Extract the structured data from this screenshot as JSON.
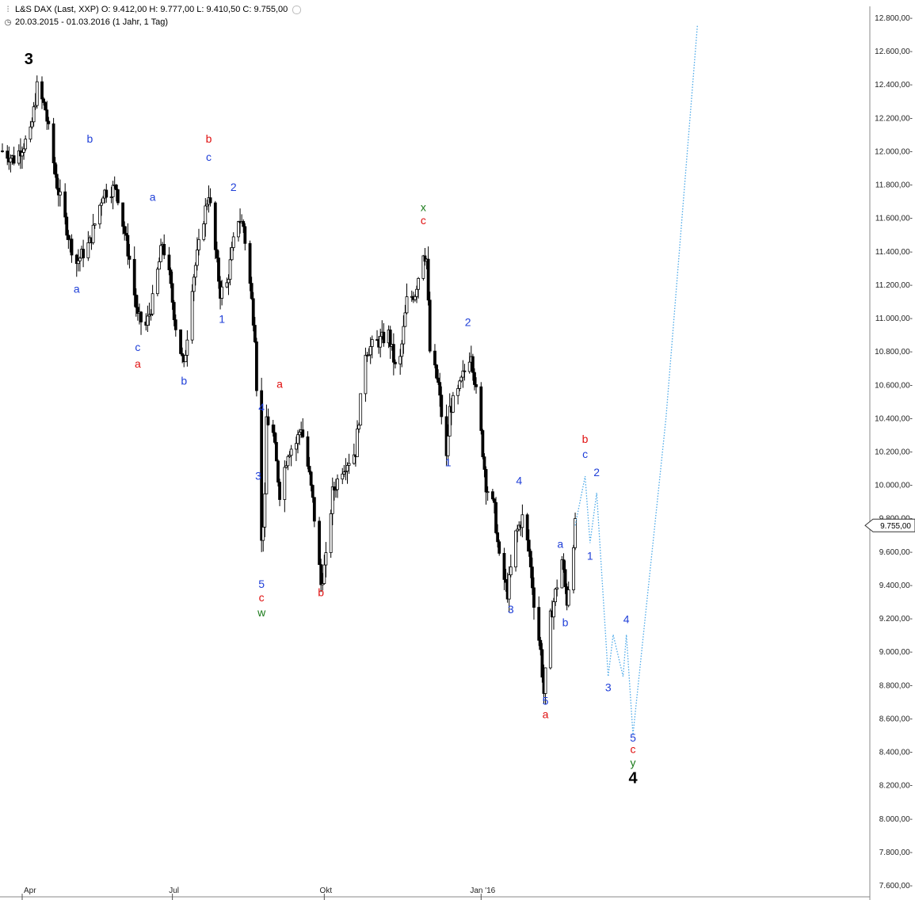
{
  "header": {
    "chart_icon": "candlestick-icon",
    "clock_icon": "clock-icon",
    "line1": "L&S DAX (Last, XXP)  O: 9.412,00  H: 9.777,00  L: 9.410,50  C: 9.755,00",
    "line2": "20.03.2015 - 01.03.2016 (1 Jahr, 1 Tag)"
  },
  "chart_data": {
    "type": "candlestick",
    "instrument": "L&S DAX",
    "period": "20.03.2015 - 01.03.2016",
    "ohlc_last": {
      "open": 9412.0,
      "high": 9777.0,
      "low": 9410.5,
      "close": 9755.0
    },
    "last_price_label": "9.755,00",
    "ylim": [
      7600,
      12800
    ],
    "y_ticks": [
      {
        "v": 12800,
        "label": "12.800,00-"
      },
      {
        "v": 12600,
        "label": "12.600,00-"
      },
      {
        "v": 12400,
        "label": "12.400,00-"
      },
      {
        "v": 12200,
        "label": "12.200,00-"
      },
      {
        "v": 12000,
        "label": "12.000,00-"
      },
      {
        "v": 11800,
        "label": "11.800,00-"
      },
      {
        "v": 11600,
        "label": "11.600,00-"
      },
      {
        "v": 11400,
        "label": "11.400,00-"
      },
      {
        "v": 11200,
        "label": "11.200,00-"
      },
      {
        "v": 11000,
        "label": "11.000,00-"
      },
      {
        "v": 10800,
        "label": "10.800,00-"
      },
      {
        "v": 10600,
        "label": "10.600,00-"
      },
      {
        "v": 10400,
        "label": "10.400,00-"
      },
      {
        "v": 10200,
        "label": "10.200,00-"
      },
      {
        "v": 10000,
        "label": "10.000,00-"
      },
      {
        "v": 9800,
        "label": "9.800,00-"
      },
      {
        "v": 9600,
        "label": "9.600,00-"
      },
      {
        "v": 9400,
        "label": "9.400,00-"
      },
      {
        "v": 9200,
        "label": "9.200,00-"
      },
      {
        "v": 9000,
        "label": "9.000,00-"
      },
      {
        "v": 8800,
        "label": "8.800,00-"
      },
      {
        "v": 8600,
        "label": "8.600,00-"
      },
      {
        "v": 8400,
        "label": "8.400,00-"
      },
      {
        "v": 8200,
        "label": "8.200,00-"
      },
      {
        "v": 8000,
        "label": "8.000,00-"
      },
      {
        "v": 7800,
        "label": "7.800,00-"
      },
      {
        "v": 7600,
        "label": "7.600,00-"
      }
    ],
    "x_ticks": [
      {
        "date": "2015-04-01",
        "label": "Apr"
      },
      {
        "date": "2015-07-01",
        "label": "Jul"
      },
      {
        "date": "2015-10-01",
        "label": "Okt"
      },
      {
        "date": "2016-01-04",
        "label": "Jan '16"
      }
    ],
    "price_path": [
      {
        "date": "2015-03-20",
        "v": 12000
      },
      {
        "date": "2015-03-27",
        "v": 11950
      },
      {
        "date": "2015-04-06",
        "v": 12100
      },
      {
        "date": "2015-04-10",
        "v": 12380
      },
      {
        "date": "2015-04-15",
        "v": 12250
      },
      {
        "date": "2015-04-22",
        "v": 11800
      },
      {
        "date": "2015-04-30",
        "v": 11450
      },
      {
        "date": "2015-05-04",
        "v": 11330
      },
      {
        "date": "2015-05-12",
        "v": 11450
      },
      {
        "date": "2015-05-20",
        "v": 11750
      },
      {
        "date": "2015-05-28",
        "v": 11780
      },
      {
        "date": "2015-06-05",
        "v": 11350
      },
      {
        "date": "2015-06-10",
        "v": 11000
      },
      {
        "date": "2015-06-15",
        "v": 10950
      },
      {
        "date": "2015-06-19",
        "v": 11100
      },
      {
        "date": "2015-06-25",
        "v": 11450
      },
      {
        "date": "2015-06-29",
        "v": 11250
      },
      {
        "date": "2015-07-03",
        "v": 10950
      },
      {
        "date": "2015-07-08",
        "v": 10700
      },
      {
        "date": "2015-07-13",
        "v": 11200
      },
      {
        "date": "2015-07-20",
        "v": 11600
      },
      {
        "date": "2015-07-23",
        "v": 11750
      },
      {
        "date": "2015-07-27",
        "v": 11400
      },
      {
        "date": "2015-07-30",
        "v": 11150
      },
      {
        "date": "2015-08-03",
        "v": 11200
      },
      {
        "date": "2015-08-07",
        "v": 11450
      },
      {
        "date": "2015-08-10",
        "v": 11600
      },
      {
        "date": "2015-08-13",
        "v": 11550
      },
      {
        "date": "2015-08-17",
        "v": 11200
      },
      {
        "date": "2015-08-20",
        "v": 10900
      },
      {
        "date": "2015-08-21",
        "v": 10600
      },
      {
        "date": "2015-08-24",
        "v": 9650
      },
      {
        "date": "2015-08-26",
        "v": 9900
      },
      {
        "date": "2015-08-27",
        "v": 10400
      },
      {
        "date": "2015-08-31",
        "v": 10300
      },
      {
        "date": "2015-09-04",
        "v": 9950
      },
      {
        "date": "2015-09-09",
        "v": 10200
      },
      {
        "date": "2015-09-14",
        "v": 10250
      },
      {
        "date": "2015-09-17",
        "v": 10350
      },
      {
        "date": "2015-09-22",
        "v": 10050
      },
      {
        "date": "2015-09-24",
        "v": 9900
      },
      {
        "date": "2015-09-29",
        "v": 9400
      },
      {
        "date": "2015-10-02",
        "v": 9550
      },
      {
        "date": "2015-10-06",
        "v": 9950
      },
      {
        "date": "2015-10-12",
        "v": 10100
      },
      {
        "date": "2015-10-16",
        "v": 10150
      },
      {
        "date": "2015-10-20",
        "v": 10200
      },
      {
        "date": "2015-10-26",
        "v": 10800
      },
      {
        "date": "2015-11-02",
        "v": 10850
      },
      {
        "date": "2015-11-09",
        "v": 10900
      },
      {
        "date": "2015-11-13",
        "v": 10700
      },
      {
        "date": "2015-11-16",
        "v": 10750
      },
      {
        "date": "2015-11-20",
        "v": 11100
      },
      {
        "date": "2015-11-25",
        "v": 11150
      },
      {
        "date": "2015-11-30",
        "v": 11400
      },
      {
        "date": "2015-12-02",
        "v": 11350
      },
      {
        "date": "2015-12-04",
        "v": 10800
      },
      {
        "date": "2015-12-09",
        "v": 10600
      },
      {
        "date": "2015-12-14",
        "v": 10150
      },
      {
        "date": "2015-12-16",
        "v": 10450
      },
      {
        "date": "2015-12-21",
        "v": 10550
      },
      {
        "date": "2015-12-24",
        "v": 10650
      },
      {
        "date": "2015-12-29",
        "v": 10800
      },
      {
        "date": "2016-01-04",
        "v": 10300
      },
      {
        "date": "2016-01-07",
        "v": 10000
      },
      {
        "date": "2016-01-12",
        "v": 9850
      },
      {
        "date": "2016-01-15",
        "v": 9550
      },
      {
        "date": "2016-01-20",
        "v": 9350
      },
      {
        "date": "2016-01-25",
        "v": 9700
      },
      {
        "date": "2016-01-29",
        "v": 9800
      },
      {
        "date": "2016-02-02",
        "v": 9600
      },
      {
        "date": "2016-02-05",
        "v": 9300
      },
      {
        "date": "2016-02-09",
        "v": 9000
      },
      {
        "date": "2016-02-11",
        "v": 8750
      },
      {
        "date": "2016-02-15",
        "v": 9200
      },
      {
        "date": "2016-02-19",
        "v": 9400
      },
      {
        "date": "2016-02-22",
        "v": 9550
      },
      {
        "date": "2016-02-25",
        "v": 9300
      },
      {
        "date": "2016-03-01",
        "v": 9755
      }
    ],
    "projection": [
      {
        "date": "2016-03-01",
        "v": 9755
      },
      {
        "date": "2016-03-07",
        "v": 10050
      },
      {
        "date": "2016-03-10",
        "v": 9650
      },
      {
        "date": "2016-03-14",
        "v": 9950
      },
      {
        "date": "2016-03-21",
        "v": 8850
      },
      {
        "date": "2016-03-24",
        "v": 9100
      },
      {
        "date": "2016-03-30",
        "v": 8850
      },
      {
        "date": "2016-04-01",
        "v": 9100
      },
      {
        "date": "2016-04-05",
        "v": 8500
      },
      {
        "date": "2016-04-25",
        "v": 10400
      },
      {
        "date": "2016-05-14",
        "v": 12750
      }
    ],
    "wave_labels": [
      {
        "text": "3",
        "date": "2015-04-05",
        "v": 12520,
        "color": "black",
        "big": true
      },
      {
        "text": "b",
        "date": "2015-05-12",
        "v": 12050,
        "color": "blue"
      },
      {
        "text": "a",
        "date": "2015-05-04",
        "v": 11150,
        "color": "blue"
      },
      {
        "text": "c",
        "date": "2015-06-10",
        "v": 10800,
        "color": "blue"
      },
      {
        "text": "a",
        "date": "2015-06-10",
        "v": 10700,
        "color": "red"
      },
      {
        "text": "a",
        "date": "2015-06-19",
        "v": 11700,
        "color": "blue"
      },
      {
        "text": "b",
        "date": "2015-07-08",
        "v": 10600,
        "color": "blue"
      },
      {
        "text": "b",
        "date": "2015-07-23",
        "v": 12050,
        "color": "red"
      },
      {
        "text": "c",
        "date": "2015-07-23",
        "v": 11940,
        "color": "blue"
      },
      {
        "text": "2",
        "date": "2015-08-07",
        "v": 11760,
        "color": "blue"
      },
      {
        "text": "1",
        "date": "2015-07-31",
        "v": 10970,
        "color": "blue"
      },
      {
        "text": "a",
        "date": "2015-09-04",
        "v": 10580,
        "color": "red"
      },
      {
        "text": "4",
        "date": "2015-08-24",
        "v": 10440,
        "color": "blue"
      },
      {
        "text": "3",
        "date": "2015-08-22",
        "v": 10030,
        "color": "blue"
      },
      {
        "text": "5",
        "date": "2015-08-24",
        "v": 9380,
        "color": "blue"
      },
      {
        "text": "c",
        "date": "2015-08-24",
        "v": 9300,
        "color": "red"
      },
      {
        "text": "w",
        "date": "2015-08-24",
        "v": 9210,
        "color": "green"
      },
      {
        "text": "b",
        "date": "2015-09-29",
        "v": 9330,
        "color": "red"
      },
      {
        "text": "x",
        "date": "2015-11-30",
        "v": 11640,
        "color": "green"
      },
      {
        "text": "c",
        "date": "2015-11-30",
        "v": 11560,
        "color": "red"
      },
      {
        "text": "1",
        "date": "2015-12-15",
        "v": 10110,
        "color": "blue"
      },
      {
        "text": "2",
        "date": "2015-12-27",
        "v": 10950,
        "color": "blue"
      },
      {
        "text": "4",
        "date": "2016-01-27",
        "v": 10000,
        "color": "blue"
      },
      {
        "text": "3",
        "date": "2016-01-22",
        "v": 9230,
        "color": "blue"
      },
      {
        "text": "a",
        "date": "2016-02-21",
        "v": 9620,
        "color": "blue"
      },
      {
        "text": "b",
        "date": "2016-02-24",
        "v": 9150,
        "color": "blue"
      },
      {
        "text": "5",
        "date": "2016-02-12",
        "v": 8680,
        "color": "blue"
      },
      {
        "text": "a",
        "date": "2016-02-12",
        "v": 8600,
        "color": "red"
      },
      {
        "text": "b",
        "date": "2016-03-07",
        "v": 10250,
        "color": "red"
      },
      {
        "text": "c",
        "date": "2016-03-07",
        "v": 10160,
        "color": "blue"
      },
      {
        "text": "2",
        "date": "2016-03-14",
        "v": 10050,
        "color": "blue"
      },
      {
        "text": "1",
        "date": "2016-03-10",
        "v": 9550,
        "color": "blue"
      },
      {
        "text": "4",
        "date": "2016-04-01",
        "v": 9170,
        "color": "blue"
      },
      {
        "text": "3",
        "date": "2016-03-21",
        "v": 8760,
        "color": "blue"
      },
      {
        "text": "5",
        "date": "2016-04-05",
        "v": 8460,
        "color": "blue"
      },
      {
        "text": "c",
        "date": "2016-04-05",
        "v": 8390,
        "color": "red"
      },
      {
        "text": "y",
        "date": "2016-04-05",
        "v": 8310,
        "color": "green"
      },
      {
        "text": "4",
        "date": "2016-04-05",
        "v": 8210,
        "color": "black",
        "big": true
      }
    ],
    "colors": {
      "blue": "#1f3fd8",
      "red": "#e01010",
      "green": "#1a7a1a",
      "black": "#000000",
      "projection": "#4aa8e8",
      "candle": "#000000"
    }
  }
}
